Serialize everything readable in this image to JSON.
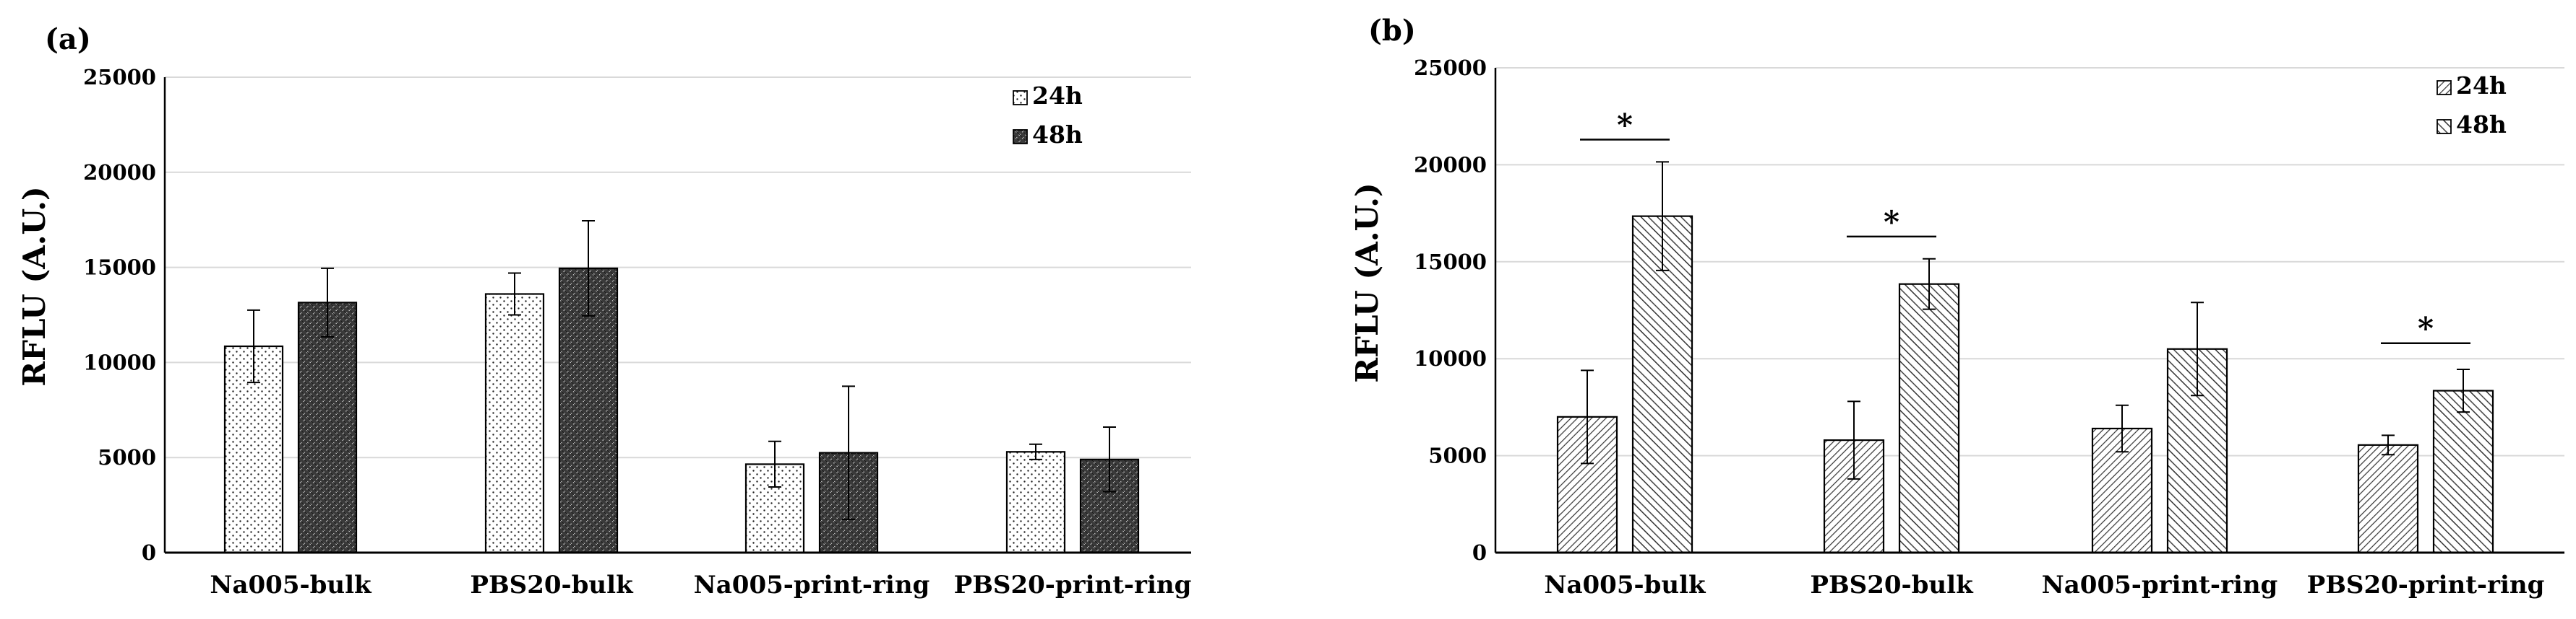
{
  "figure": {
    "panels": [
      "(a)",
      "(b)"
    ]
  },
  "chart_data": [
    {
      "type": "bar",
      "panel_label": "(a)",
      "title": "",
      "xlabel": "",
      "ylabel": "RFLU (A.U.)",
      "ylim": [
        0,
        25000
      ],
      "yticks": [
        0,
        5000,
        10000,
        15000,
        20000,
        25000
      ],
      "grid": true,
      "legend_position": "top-right",
      "categories": [
        "Na005-bulk",
        "PBS20-bulk",
        "Na005-print-ring",
        "PBS20-print-ring"
      ],
      "series": [
        {
          "name": "24h",
          "values": [
            10850,
            13600,
            4650,
            5300
          ],
          "errors": [
            1900,
            1100,
            1200,
            400
          ]
        },
        {
          "name": "48h",
          "values": [
            13150,
            14950,
            5250,
            4900
          ],
          "errors": [
            1800,
            2500,
            3500,
            1700
          ]
        }
      ],
      "significance": []
    },
    {
      "type": "bar",
      "panel_label": "(b)",
      "title": "",
      "xlabel": "",
      "ylabel": "RFLU (A.U.)",
      "ylim": [
        0,
        25000
      ],
      "yticks": [
        0,
        5000,
        10000,
        15000,
        20000,
        25000
      ],
      "grid": true,
      "legend_position": "top-right",
      "categories": [
        "Na005-bulk",
        "PBS20-bulk",
        "Na005-print-ring",
        "PBS20-print-ring"
      ],
      "series": [
        {
          "name": "24h",
          "values": [
            7000,
            5800,
            6400,
            5550
          ],
          "errors": [
            2400,
            2000,
            1200,
            500
          ]
        },
        {
          "name": "48h",
          "values": [
            17350,
            13850,
            10500,
            8350
          ],
          "errors": [
            2800,
            1300,
            2400,
            1100
          ]
        }
      ],
      "significance": [
        {
          "category": "Na005-bulk",
          "label": "*",
          "level": 21300
        },
        {
          "category": "PBS20-bulk",
          "label": "*",
          "level": 16300
        },
        {
          "category": "PBS20-print-ring",
          "label": "*",
          "level": 10800
        }
      ]
    }
  ]
}
